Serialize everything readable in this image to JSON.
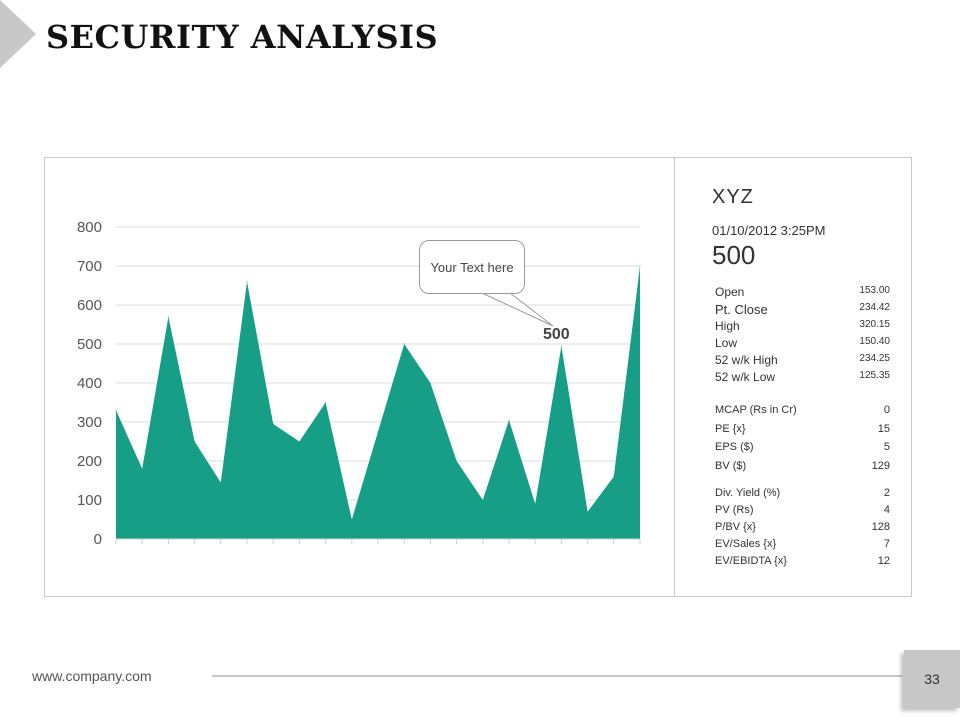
{
  "slide": {
    "title": "SECURITY ANALYSIS",
    "footer_url": "www.company.com",
    "page_number": "33"
  },
  "callout": {
    "text": "Your Text here",
    "value": "500"
  },
  "stock": {
    "name": "XYZ",
    "datetime": "01/10/2012  3:25PM",
    "price": "500",
    "quotes": [
      {
        "label": "Open",
        "value": "153.00"
      },
      {
        "label": "Pt. Close",
        "value": "234.42"
      },
      {
        "label": "High",
        "value": "320.15"
      },
      {
        "label": "Low",
        "value": "150.40"
      },
      {
        "label": "52 w/k High",
        "value": "234.25"
      },
      {
        "label": "52 w/k Low",
        "value": "125.35"
      }
    ],
    "ratios": [
      {
        "label": "MCAP (Rs in Cr)",
        "value": "0"
      },
      {
        "label": "PE {x}",
        "value": "15"
      },
      {
        "label": "EPS ($)",
        "value": "5"
      },
      {
        "label": "BV ($)",
        "value": "129"
      }
    ],
    "yields": [
      {
        "label": "Div. Yield (%)",
        "value": "2"
      },
      {
        "label": "PV (Rs)",
        "value": "4"
      },
      {
        "label": "P/BV {x}",
        "value": "128"
      },
      {
        "label": "EV/Sales  {x}",
        "value": "7"
      },
      {
        "label": "EV/EBIDTA {x}",
        "value": "12"
      }
    ]
  },
  "chart_data": {
    "type": "area",
    "title": "",
    "xlabel": "",
    "ylabel": "",
    "ylim": [
      0,
      800
    ],
    "yticks": [
      "0",
      "100",
      "200",
      "300",
      "400",
      "500",
      "600",
      "700",
      "800"
    ],
    "grid": true,
    "series": [
      {
        "color": "#179e86",
        "values": [
          330,
          180,
          570,
          250,
          145,
          660,
          295,
          250,
          350,
          50,
          275,
          500,
          400,
          200,
          100,
          305,
          90,
          495,
          70,
          160,
          700
        ]
      }
    ]
  }
}
